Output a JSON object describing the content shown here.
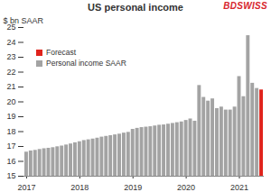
{
  "chart_data": {
    "type": "bar",
    "title": "US personal income",
    "y_label": "$ bn SAAR",
    "annotations": [
      "BDSWISS"
    ],
    "categories": [
      "2017",
      null,
      null,
      null,
      null,
      null,
      null,
      null,
      null,
      null,
      null,
      null,
      "2018",
      null,
      null,
      null,
      null,
      null,
      null,
      null,
      null,
      null,
      null,
      null,
      "2019",
      null,
      null,
      null,
      null,
      null,
      null,
      null,
      null,
      null,
      null,
      null,
      "2020",
      null,
      null,
      null,
      null,
      null,
      null,
      null,
      null,
      null,
      null,
      null,
      "2021",
      null,
      null,
      null,
      null,
      null
    ],
    "series": [
      {
        "name": "Forecast",
        "color": "#e0231c",
        "values": [
          null,
          null,
          null,
          null,
          null,
          null,
          null,
          null,
          null,
          null,
          null,
          null,
          null,
          null,
          null,
          null,
          null,
          null,
          null,
          null,
          null,
          null,
          null,
          null,
          null,
          null,
          null,
          null,
          null,
          null,
          null,
          null,
          null,
          null,
          null,
          null,
          null,
          null,
          null,
          null,
          null,
          null,
          null,
          null,
          null,
          null,
          null,
          null,
          null,
          null,
          null,
          null,
          null,
          20.8
        ]
      },
      {
        "name": "Personal income SAAR",
        "color": "#a3a3a3",
        "values": [
          16.62,
          16.7,
          16.74,
          16.8,
          16.85,
          16.88,
          16.92,
          16.98,
          17.03,
          17.1,
          17.17,
          17.25,
          17.32,
          17.4,
          17.45,
          17.5,
          17.56,
          17.63,
          17.68,
          17.73,
          17.78,
          17.83,
          17.9,
          17.95,
          18.15,
          18.22,
          18.27,
          18.3,
          18.33,
          18.38,
          18.43,
          18.45,
          18.5,
          18.55,
          18.6,
          18.65,
          18.75,
          18.85,
          18.7,
          21.1,
          20.3,
          20.05,
          20.2,
          19.55,
          19.65,
          19.45,
          19.45,
          19.65,
          21.7,
          20.35,
          24.45,
          21.25,
          20.9,
          null
        ]
      }
    ],
    "ylim": [
      15,
      25
    ],
    "yticks": [
      15,
      16,
      17,
      18,
      19,
      20,
      21,
      22,
      23,
      24,
      25
    ],
    "grid": false,
    "legend": "upper left"
  }
}
